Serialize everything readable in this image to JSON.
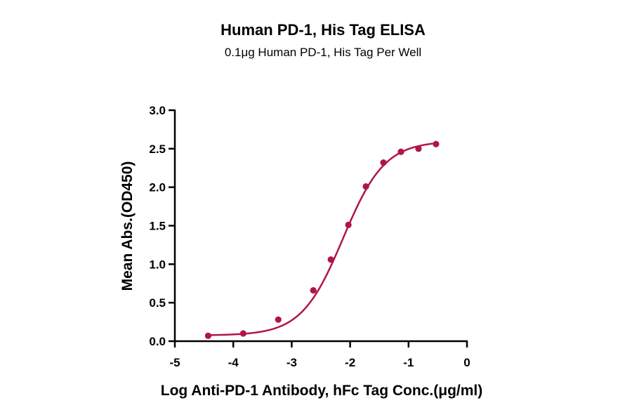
{
  "colors": {
    "series": "#b0154a",
    "axis": "#000000",
    "background": "#ffffff"
  },
  "chart_data": {
    "type": "scatter",
    "title": "Human PD-1, His Tag ELISA",
    "subtitle": "0.1μg Human PD-1, His Tag Per Well",
    "xlabel": "Log Anti-PD-1 Antibody, hFc Tag Conc.(μg/ml)",
    "ylabel": "Mean Abs.(OD450)",
    "xlim": [
      -5,
      0
    ],
    "ylim": [
      0,
      3.0
    ],
    "x_ticks": [
      -5,
      -4,
      -3,
      -2,
      -1,
      0
    ],
    "x_tick_labels": [
      "-5",
      "-4",
      "-3",
      "-2",
      "-1",
      "0"
    ],
    "y_ticks": [
      0,
      0.5,
      1.0,
      1.5,
      2.0,
      2.5,
      3.0
    ],
    "y_tick_labels": [
      "0.0",
      "0.5",
      "1.0",
      "1.5",
      "2.0",
      "2.5",
      "3.0"
    ],
    "grid": false,
    "legend": "none",
    "series": [
      {
        "marker": "circle",
        "fit": "sigmoidal 4PL",
        "x": [
          -4.43,
          -3.83,
          -3.23,
          -2.63,
          -2.33,
          -2.03,
          -1.73,
          -1.43,
          -1.13,
          -0.83,
          -0.53
        ],
        "y": [
          0.07,
          0.1,
          0.28,
          0.66,
          1.06,
          1.51,
          2.01,
          2.32,
          2.46,
          2.5,
          2.56
        ]
      }
    ]
  }
}
